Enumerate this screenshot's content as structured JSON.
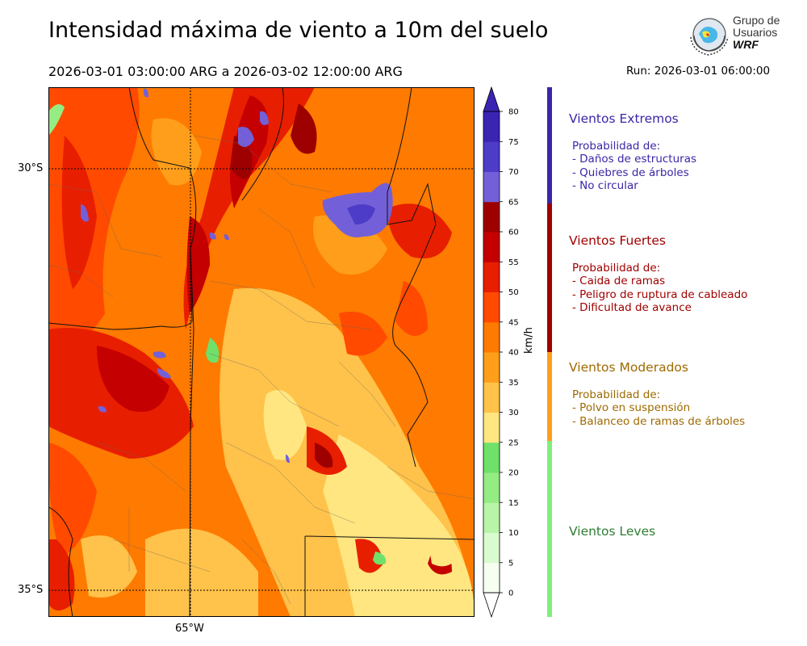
{
  "header": {
    "title": "Intensidad máxima de viento a 10m del suelo",
    "period": "2026-03-01 03:00:00 ARG  a  2026-03-02 12:00:00 ARG",
    "run": "Run: 2026-03-01 06:00:00"
  },
  "logo": {
    "line1": "Grupo de",
    "line2": "Usuarios",
    "line3": "WRF"
  },
  "map": {
    "lat_labels": [
      "30°S",
      "35°S"
    ],
    "lon_labels": [
      "65°W"
    ]
  },
  "colorbar": {
    "unit": "km/h",
    "ticks": [
      "0",
      "5",
      "10",
      "15",
      "20",
      "25",
      "30",
      "35",
      "40",
      "45",
      "50",
      "55",
      "60",
      "65",
      "70",
      "75",
      "80"
    ],
    "colors": [
      "#f7fff2",
      "#d9fbd0",
      "#b9f5a8",
      "#95ec82",
      "#6fe06a",
      "#ffe680",
      "#ffc24a",
      "#ff9e1a",
      "#ff7a00",
      "#ff4a00",
      "#e81e00",
      "#c40000",
      "#9e0000",
      "#7360d8",
      "#4c3cc8",
      "#3a24b4"
    ],
    "extend_max_color": "#3a24b4",
    "extend_min_color": "#ffffff"
  },
  "categories": [
    {
      "title": "Vientos Extremos",
      "color": "#3a26a8",
      "text_color": "#3a26a8",
      "lines": [
        "Probabilidad de:",
        "- Daños de estructuras",
        "- Quiebres de árboles",
        "- No circular"
      ]
    },
    {
      "title": "Vientos Fuertes",
      "color": "#a00000",
      "text_color": "#a00000",
      "lines": [
        "Probabilidad de:",
        "- Caida de ramas",
        "- Peligro de ruptura de cableado",
        "- Dificultad de avance"
      ]
    },
    {
      "title": "Vientos Moderados",
      "color": "#ff9e1a",
      "text_color": "#9e6a00",
      "lines": [
        "Probabilidad de:",
        "- Polvo en suspensión",
        "- Balanceo de ramas de árboles"
      ]
    },
    {
      "title": "Vientos Leves",
      "color": "#7ff07a",
      "text_color": "#2e7d32",
      "lines": []
    }
  ]
}
